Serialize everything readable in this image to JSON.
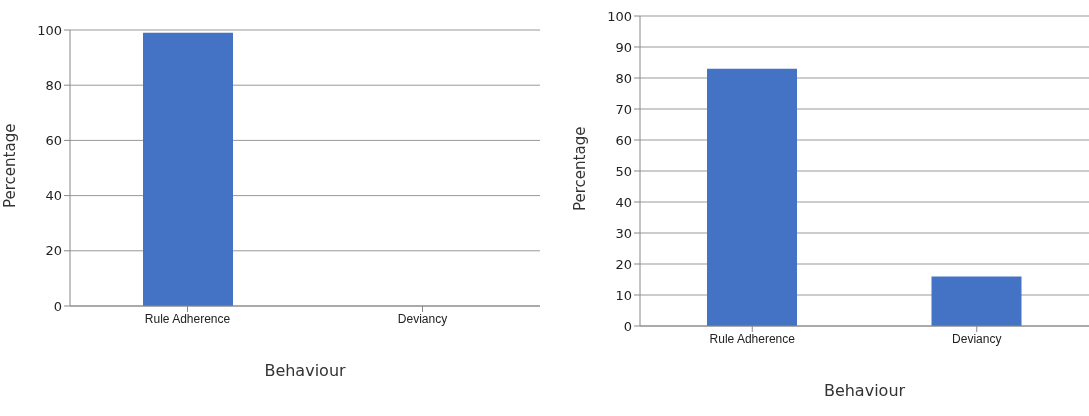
{
  "chart_data": [
    {
      "type": "bar",
      "categories": [
        "Rule Adherence",
        "Deviancy"
      ],
      "values": [
        99,
        0
      ],
      "color": "#4472c4",
      "xlabel": "Behaviour",
      "ylabel": "Percentage",
      "ylim": [
        0,
        100
      ],
      "yticks": [
        0,
        20,
        40,
        60,
        80,
        100
      ],
      "grid": "y"
    },
    {
      "type": "bar",
      "categories": [
        "Rule Adherence",
        "Deviancy"
      ],
      "values": [
        83,
        16
      ],
      "color": "#4472c4",
      "xlabel": "Behaviour",
      "ylabel": "Percentage",
      "ylim": [
        0,
        100
      ],
      "yticks": [
        0,
        10,
        20,
        30,
        40,
        50,
        60,
        70,
        80,
        90,
        100
      ],
      "grid": "y"
    }
  ]
}
